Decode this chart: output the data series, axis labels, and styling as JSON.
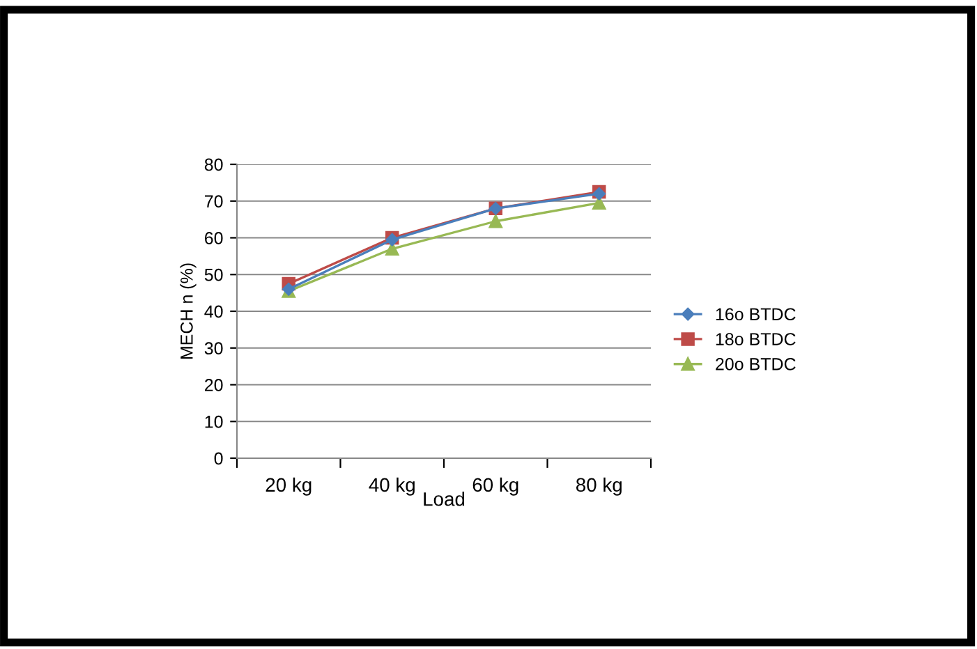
{
  "chart_data": {
    "type": "line",
    "xlabel": "Load",
    "ylabel": "MECH n (%)",
    "categories": [
      "20 kg",
      "40 kg",
      "60 kg",
      "80 kg"
    ],
    "series": [
      {
        "name": "16o BTDC",
        "color": "#4a7ebb",
        "marker": "diamond",
        "values": [
          46,
          59.5,
          68,
          72
        ]
      },
      {
        "name": "18o BTDC",
        "color": "#be4b48",
        "marker": "square",
        "values": [
          47.5,
          60,
          68,
          72.5
        ]
      },
      {
        "name": "20o BTDC",
        "color": "#98b954",
        "marker": "triangle",
        "values": [
          45.5,
          57,
          64.5,
          69.5
        ]
      }
    ],
    "ylim": [
      0,
      80
    ],
    "yticks": [
      0,
      10,
      20,
      30,
      40,
      50,
      60,
      70,
      80
    ],
    "grid": "y",
    "legend": "right"
  }
}
